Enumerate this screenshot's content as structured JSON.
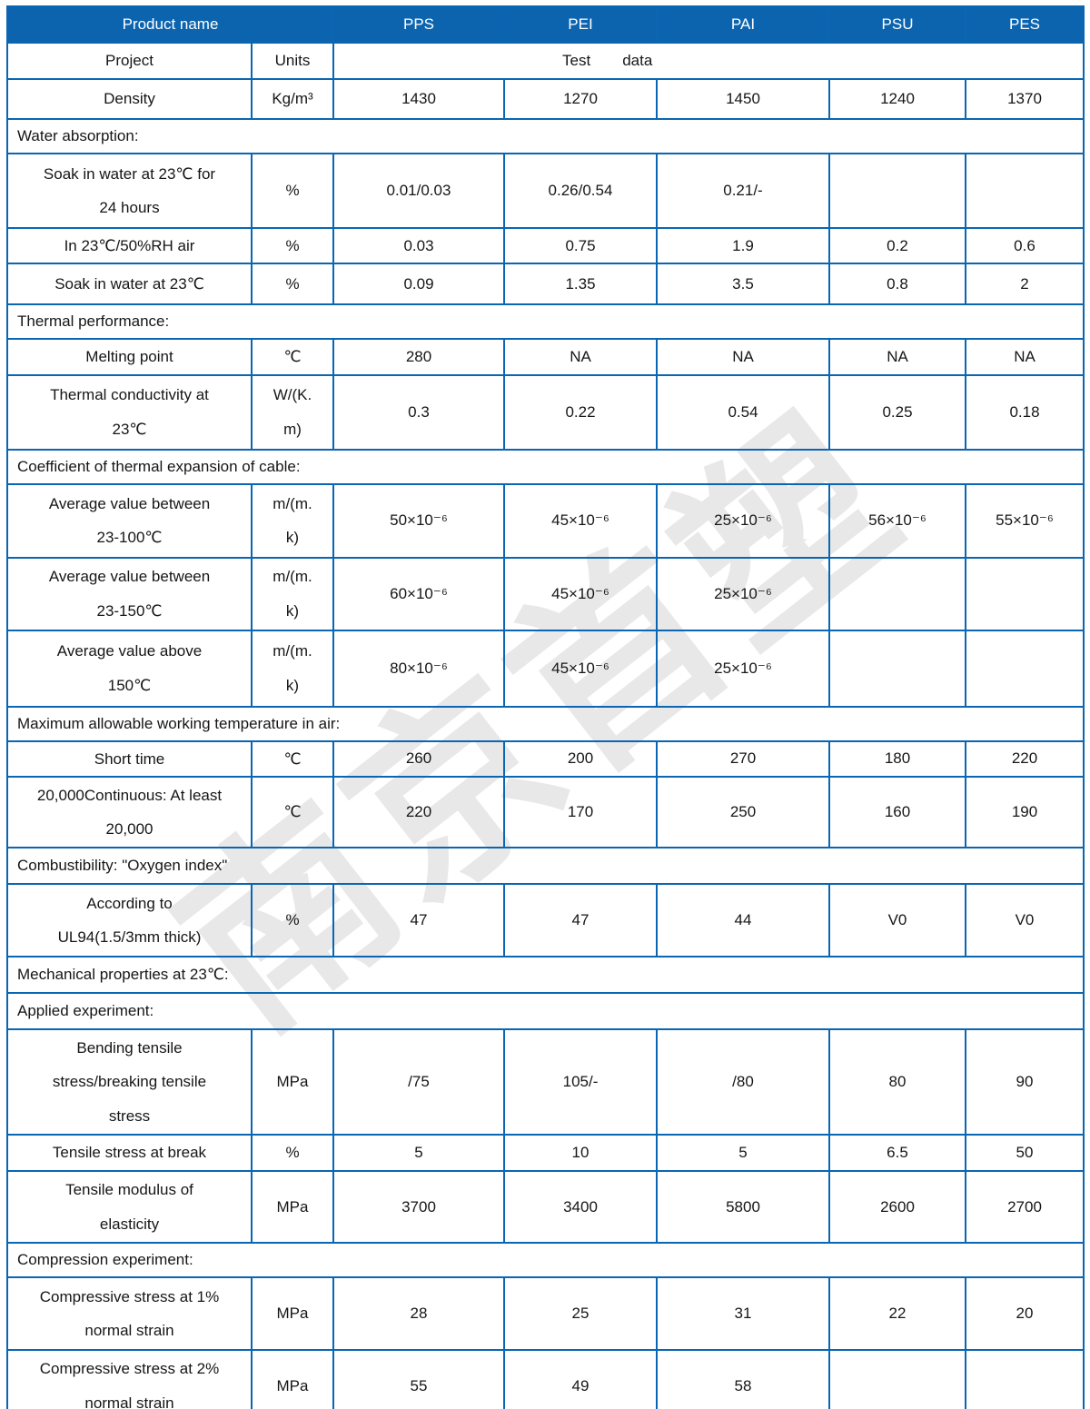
{
  "watermark": "南京首塑",
  "colors": {
    "header_bg": "#0c64af",
    "border": "#0a66b2",
    "header_text": "#ffffff",
    "body_text": "#161616"
  },
  "header": {
    "product_name": "Product name",
    "products": [
      "PPS",
      "PEI",
      "PAI",
      "PSU",
      "PES"
    ]
  },
  "subheader": {
    "project": "Project",
    "units": "Units",
    "test_label": "Test",
    "data_label": "data"
  },
  "rows": [
    {
      "kind": "data",
      "label": "Density",
      "units": "Kg/m³",
      "values": [
        "1430",
        "1270",
        "1450",
        "1240",
        "1370"
      ]
    },
    {
      "kind": "section",
      "label": "Water absorption:"
    },
    {
      "kind": "data",
      "label": "Soak in water at 23℃ for\n24 hours",
      "units": "%",
      "values": [
        "0.01/0.03",
        "0.26/0.54",
        "0.21/-",
        "",
        ""
      ]
    },
    {
      "kind": "data",
      "label": "In 23℃/50%RH air",
      "units": "%",
      "values": [
        "0.03",
        "0.75",
        "1.9",
        "0.2",
        "0.6"
      ]
    },
    {
      "kind": "data",
      "label": "Soak in water at 23℃",
      "units": "%",
      "values": [
        "0.09",
        "1.35",
        "3.5",
        "0.8",
        "2"
      ]
    },
    {
      "kind": "section",
      "label": "Thermal performance:"
    },
    {
      "kind": "data",
      "label": "Melting point",
      "units": "℃",
      "values": [
        "280",
        "NA",
        "NA",
        "NA",
        "NA"
      ]
    },
    {
      "kind": "data",
      "label": "Thermal conductivity at\n23℃",
      "units": "W/(K.\nm)",
      "values": [
        "0.3",
        "0.22",
        "0.54",
        "0.25",
        "0.18"
      ]
    },
    {
      "kind": "section",
      "label": "Coefficient of thermal expansion of cable:"
    },
    {
      "kind": "data",
      "label": "Average value between\n23-100℃",
      "units": "m/(m.\nk)",
      "values": [
        "50×10⁻⁶",
        "45×10⁻⁶",
        "25×10⁻⁶",
        "56×10⁻⁶",
        "55×10⁻⁶"
      ]
    },
    {
      "kind": "data",
      "label": "Average value between\n23-150℃",
      "units": "m/(m.\nk)",
      "values": [
        "60×10⁻⁶",
        "45×10⁻⁶",
        "25×10⁻⁶",
        "",
        ""
      ]
    },
    {
      "kind": "data",
      "label": "Average value above\n150℃",
      "units": "m/(m.\nk)",
      "values": [
        "80×10⁻⁶",
        "45×10⁻⁶",
        "25×10⁻⁶",
        "",
        ""
      ]
    },
    {
      "kind": "section",
      "label": "Maximum allowable working temperature in air:"
    },
    {
      "kind": "data",
      "label": "Short time",
      "units": "℃",
      "values": [
        "260",
        "200",
        "270",
        "180",
        "220"
      ]
    },
    {
      "kind": "data",
      "label": "20,000Continuous: At least\n20,000",
      "units": "℃",
      "values": [
        "220",
        "170",
        "250",
        "160",
        "190"
      ]
    },
    {
      "kind": "section",
      "label": "Combustibility: \"Oxygen index\""
    },
    {
      "kind": "data",
      "label": "According to\nUL94(1.5/3mm thick)",
      "units": "%",
      "values": [
        "47",
        "47",
        "44",
        "V0",
        "V0"
      ]
    },
    {
      "kind": "section",
      "label": "Mechanical properties at 23℃:"
    },
    {
      "kind": "section",
      "label": "Applied experiment:"
    },
    {
      "kind": "data",
      "label": "Bending tensile\nstress/breaking tensile\nstress",
      "units": "MPa",
      "values": [
        "/75",
        "105/-",
        "/80",
        "80",
        "90"
      ]
    },
    {
      "kind": "data",
      "label": "Tensile stress at break",
      "units": "%",
      "values": [
        "5",
        "10",
        "5",
        "6.5",
        "50"
      ]
    },
    {
      "kind": "data",
      "label": "Tensile modulus of\nelasticity",
      "units": "MPa",
      "values": [
        "3700",
        "3400",
        "5800",
        "2600",
        "2700"
      ]
    },
    {
      "kind": "section",
      "label": "Compression experiment:"
    },
    {
      "kind": "data",
      "label": "Compressive stress at 1%\nnormal strain",
      "units": "MPa",
      "values": [
        "28",
        "25",
        "31",
        "22",
        "20"
      ]
    },
    {
      "kind": "data",
      "label": "Compressive stress at 2%\nnormal strain",
      "units": "MPa",
      "values": [
        "55",
        "49",
        "58",
        "",
        ""
      ]
    }
  ]
}
